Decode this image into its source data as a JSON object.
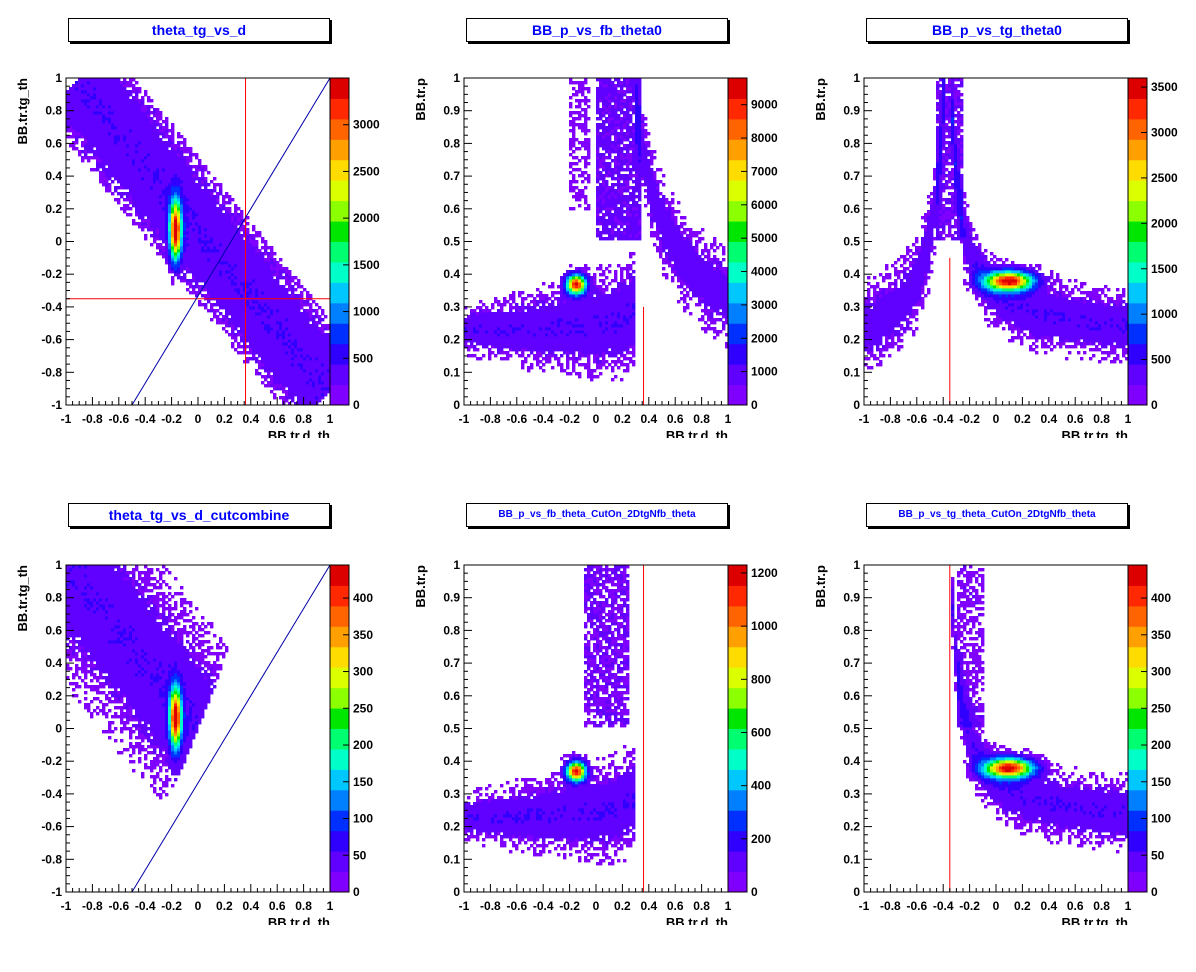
{
  "chart_data": [
    {
      "type": "heatmap",
      "title": "theta_tg_vs_d",
      "xlabel": "BB.tr.d_th",
      "ylabel": "BB.tr.tg_th",
      "xlim": [
        -1,
        1
      ],
      "ylim": [
        -1,
        1
      ],
      "x_ticks": [
        "-1",
        "-0.8",
        "-0.6",
        "-0.4",
        "-0.2",
        "0",
        "0.2",
        "0.4",
        "0.6",
        "0.8",
        "1"
      ],
      "y_ticks": [
        "-1",
        "-0.8",
        "-0.6",
        "-0.4",
        "-0.2",
        "0",
        "0.2",
        "0.4",
        "0.6",
        "0.8",
        "1"
      ],
      "colorbar": {
        "max": 3500,
        "ticks": [
          "0",
          "500",
          "1000",
          "1500",
          "2000",
          "2500",
          "3000"
        ]
      },
      "overlays": [
        {
          "kind": "vline",
          "color": "#ff0000",
          "x": 0.36
        },
        {
          "kind": "hline",
          "color": "#ff0000",
          "y": -0.35
        },
        {
          "kind": "line",
          "color": "#0000aa",
          "x1": -0.5,
          "y1": -1,
          "x2": 1,
          "y2": 1
        }
      ]
    },
    {
      "type": "heatmap",
      "title": "BB_p_vs_fb_theta0",
      "xlabel": "BB.tr.d_th",
      "ylabel": "BB.tr.p",
      "xlim": [
        -1,
        1
      ],
      "ylim": [
        0,
        1
      ],
      "x_ticks": [
        "-1",
        "-0.8",
        "-0.6",
        "-0.4",
        "-0.2",
        "0",
        "0.2",
        "0.4",
        "0.6",
        "0.8",
        "1"
      ],
      "y_ticks": [
        "0",
        "0.1",
        "0.2",
        "0.3",
        "0.4",
        "0.5",
        "0.6",
        "0.7",
        "0.8",
        "0.9",
        "1"
      ],
      "colorbar": {
        "max": 9800,
        "ticks": [
          "0",
          "1000",
          "2000",
          "3000",
          "4000",
          "5000",
          "6000",
          "7000",
          "8000",
          "9000"
        ]
      },
      "overlays": [
        {
          "kind": "vline",
          "color": "#ff0000",
          "x": 0.36,
          "y1": 0,
          "y2": 0.3
        }
      ]
    },
    {
      "type": "heatmap",
      "title": "BB_p_vs_tg_theta0",
      "xlabel": "BB.tr.tg_th",
      "ylabel": "BB.tr.p",
      "xlim": [
        -1,
        1
      ],
      "ylim": [
        0,
        1
      ],
      "x_ticks": [
        "-1",
        "-0.8",
        "-0.6",
        "-0.4",
        "-0.2",
        "0",
        "0.2",
        "0.4",
        "0.6",
        "0.8",
        "1"
      ],
      "y_ticks": [
        "0",
        "0.1",
        "0.2",
        "0.3",
        "0.4",
        "0.5",
        "0.6",
        "0.7",
        "0.8",
        "0.9",
        "1"
      ],
      "colorbar": {
        "max": 3600,
        "ticks": [
          "0",
          "500",
          "1000",
          "1500",
          "2000",
          "2500",
          "3000",
          "3500"
        ]
      },
      "overlays": [
        {
          "kind": "vline",
          "color": "#ff0000",
          "x": -0.35,
          "y1": 0,
          "y2": 0.45
        }
      ]
    },
    {
      "type": "heatmap",
      "title": "theta_tg_vs_d_cutcombine",
      "xlabel": "BB.tr.d_th",
      "ylabel": "BB.tr.tg_th",
      "xlim": [
        -1,
        1
      ],
      "ylim": [
        -1,
        1
      ],
      "x_ticks": [
        "-1",
        "-0.8",
        "-0.6",
        "-0.4",
        "-0.2",
        "0",
        "0.2",
        "0.4",
        "0.6",
        "0.8",
        "1"
      ],
      "y_ticks": [
        "-1",
        "-0.8",
        "-0.6",
        "-0.4",
        "-0.2",
        "0",
        "0.2",
        "0.4",
        "0.6",
        "0.8",
        "1"
      ],
      "colorbar": {
        "max": 445,
        "ticks": [
          "0",
          "50",
          "100",
          "150",
          "200",
          "250",
          "300",
          "350",
          "400"
        ]
      },
      "overlays": [
        {
          "kind": "line",
          "color": "#0000aa",
          "x1": -0.5,
          "y1": -1,
          "x2": 1,
          "y2": 1
        }
      ]
    },
    {
      "type": "heatmap",
      "title": "BB_p_vs_fb_theta_CutOn_2DtgNfb_theta",
      "xlabel": "BB.tr.d_th",
      "ylabel": "BB.tr.p",
      "xlim": [
        -1,
        1
      ],
      "ylim": [
        0,
        1
      ],
      "x_ticks": [
        "-1",
        "-0.8",
        "-0.6",
        "-0.4",
        "-0.2",
        "0",
        "0.2",
        "0.4",
        "0.6",
        "0.8",
        "1"
      ],
      "y_ticks": [
        "0",
        "0.1",
        "0.2",
        "0.3",
        "0.4",
        "0.5",
        "0.6",
        "0.7",
        "0.8",
        "0.9",
        "1"
      ],
      "colorbar": {
        "max": 1230,
        "ticks": [
          "0",
          "200",
          "400",
          "600",
          "800",
          "1000",
          "1200"
        ]
      },
      "overlays": [
        {
          "kind": "vline",
          "color": "#ff0000",
          "x": 0.36
        }
      ]
    },
    {
      "type": "heatmap",
      "title": "BB_p_vs_tg_theta_CutOn_2DtgNfb_theta",
      "xlabel": "BB.tr.tg_th",
      "ylabel": "BB.tr.p",
      "xlim": [
        -1,
        1
      ],
      "ylim": [
        0,
        1
      ],
      "x_ticks": [
        "-1",
        "-0.8",
        "-0.6",
        "-0.4",
        "-0.2",
        "0",
        "0.2",
        "0.4",
        "0.6",
        "0.8",
        "1"
      ],
      "y_ticks": [
        "0",
        "0.1",
        "0.2",
        "0.3",
        "0.4",
        "0.5",
        "0.6",
        "0.7",
        "0.8",
        "0.9",
        "1"
      ],
      "colorbar": {
        "max": 445,
        "ticks": [
          "0",
          "50",
          "100",
          "150",
          "200",
          "250",
          "300",
          "350",
          "400"
        ]
      },
      "overlays": [
        {
          "kind": "vline",
          "color": "#ff0000",
          "x": -0.35
        }
      ]
    }
  ]
}
